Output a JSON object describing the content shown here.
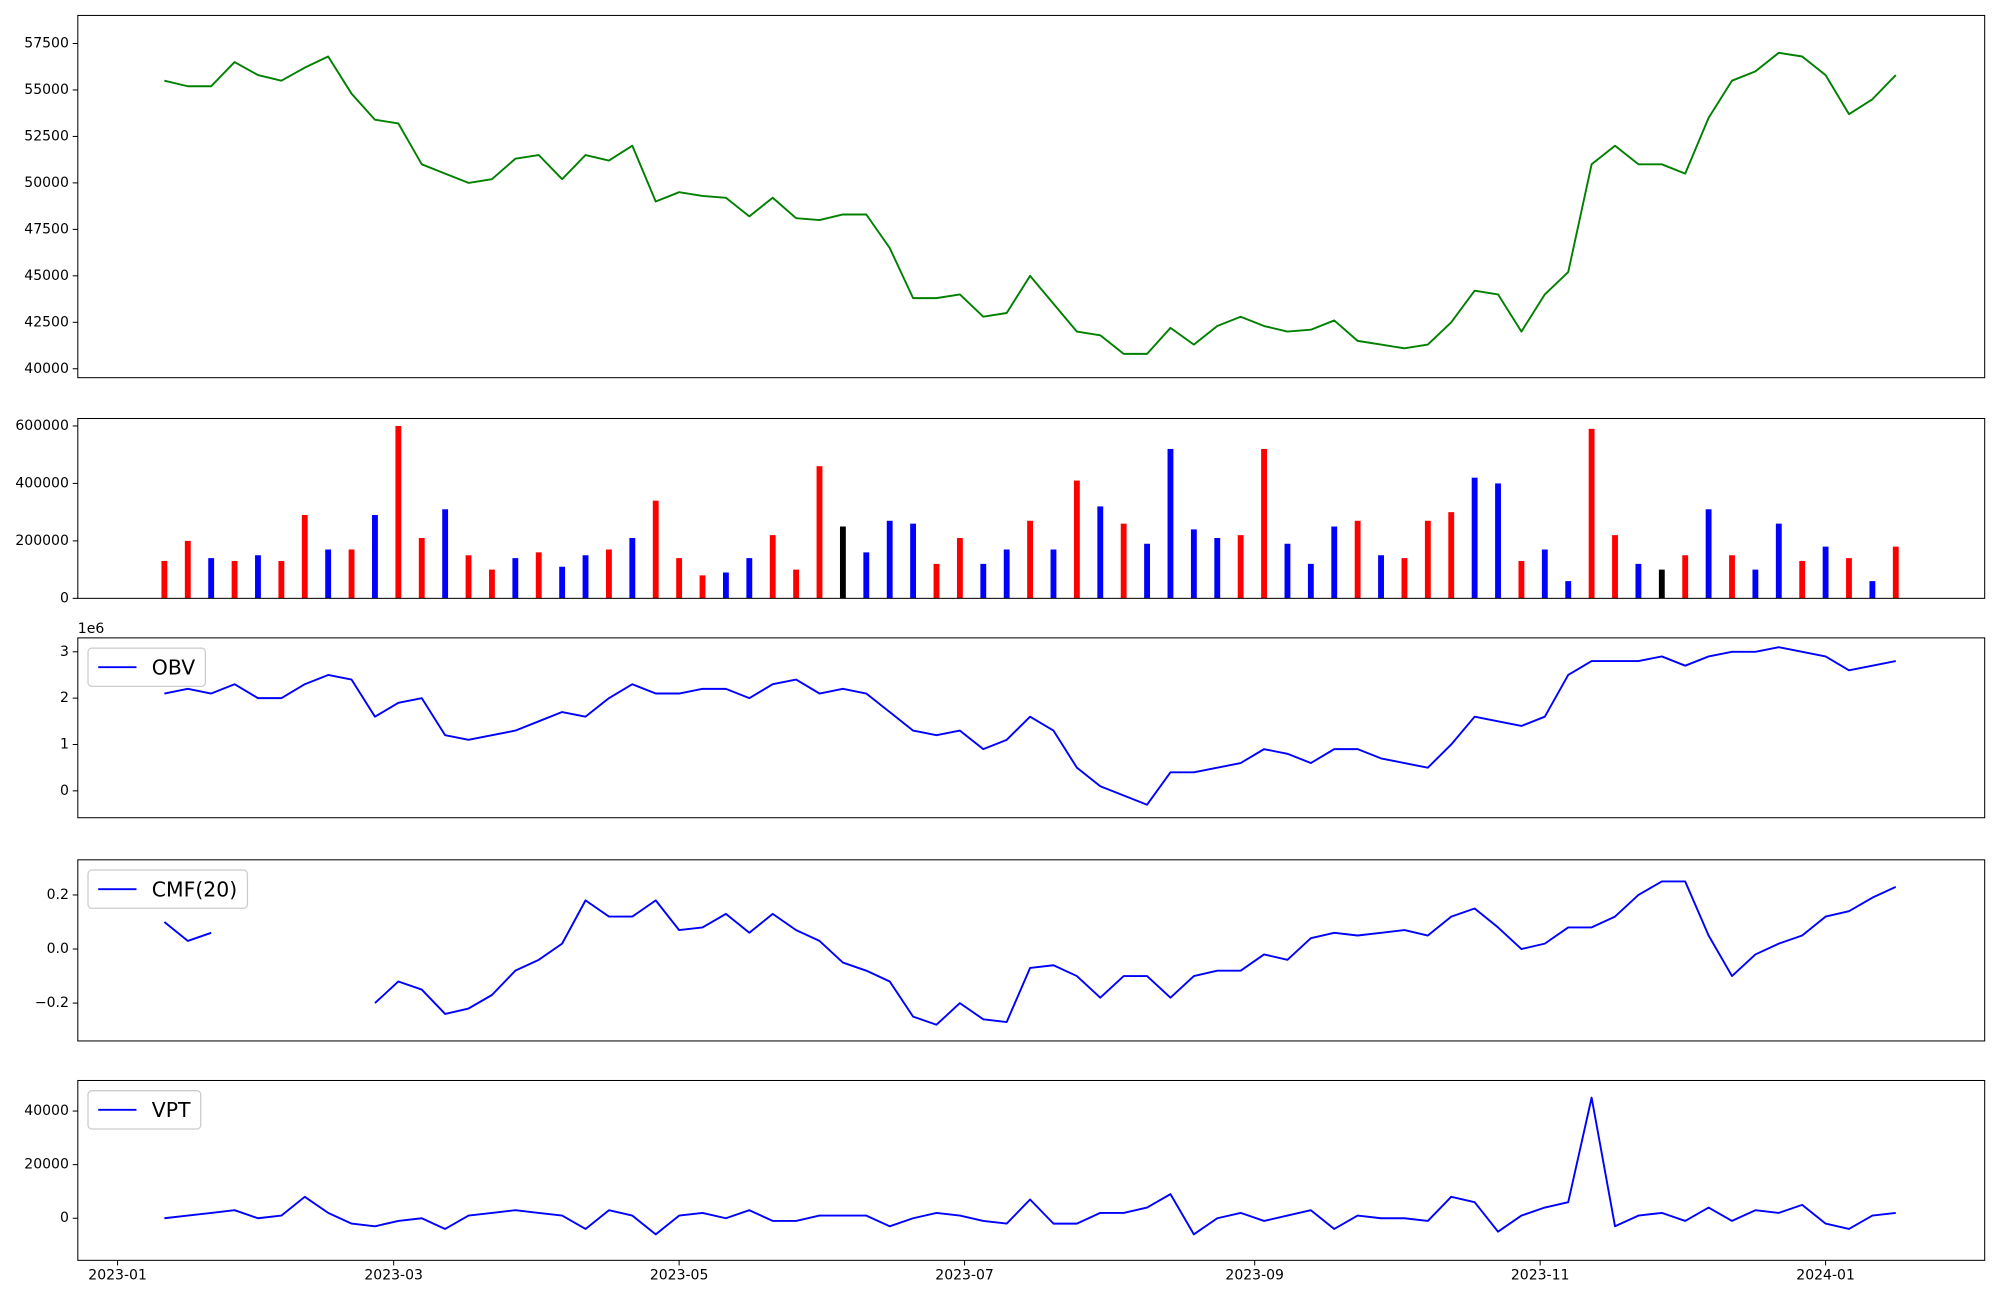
{
  "chart_data": [
    {
      "type": "line",
      "xlim": [
        -8.5,
        399
      ],
      "ylim": [
        39520,
        59010
      ],
      "yticks": [
        40000,
        42500,
        45000,
        47500,
        50000,
        52500,
        55000,
        57500
      ],
      "x": [
        10,
        15,
        20,
        25,
        30,
        35,
        40,
        45,
        50,
        55,
        60,
        65,
        70,
        75,
        80,
        85,
        90,
        95,
        100,
        105,
        110,
        115,
        120,
        125,
        130,
        135,
        140,
        145,
        150,
        155,
        160,
        165,
        170,
        175,
        180,
        185,
        190,
        195,
        200,
        205,
        210,
        215,
        220,
        225,
        230,
        235,
        240,
        245,
        250,
        255,
        260,
        265,
        270,
        275,
        280,
        285,
        290,
        295,
        300,
        305,
        310,
        315,
        320,
        325,
        330,
        335,
        340,
        345,
        350,
        355,
        360,
        365,
        370,
        375,
        380
      ],
      "series": [
        {
          "color": "#008000",
          "values": [
            55500,
            55200,
            55200,
            56500,
            55800,
            55500,
            56200,
            56800,
            54800,
            53400,
            53200,
            51000,
            50500,
            50000,
            50200,
            51300,
            51500,
            50200,
            51500,
            51200,
            52000,
            49000,
            49500,
            49300,
            49200,
            48200,
            49200,
            48100,
            48000,
            48300,
            48300,
            46500,
            43800,
            43800,
            44000,
            42800,
            43000,
            45000,
            43500,
            42000,
            41800,
            40800,
            40800,
            42200,
            41300,
            42300,
            42800,
            42300,
            42000,
            42100,
            42600,
            41500,
            41300,
            41100,
            41300,
            42500,
            44200,
            44000,
            42000,
            44000,
            45200,
            51000,
            52000,
            51000,
            51000,
            50500,
            53500,
            55500,
            56000,
            57000,
            56800,
            55800,
            53700,
            54500,
            55800
          ]
        }
      ]
    },
    {
      "type": "bar",
      "xlim": [
        -8.5,
        399
      ],
      "ylim": [
        0,
        626000
      ],
      "yticks": [
        0,
        200000,
        400000,
        600000
      ],
      "x": [
        10,
        15,
        20,
        25,
        30,
        35,
        40,
        45,
        50,
        55,
        60,
        65,
        70,
        75,
        80,
        85,
        90,
        95,
        100,
        105,
        110,
        115,
        120,
        125,
        130,
        135,
        140,
        145,
        150,
        155,
        160,
        165,
        170,
        175,
        180,
        185,
        190,
        195,
        200,
        205,
        210,
        215,
        220,
        225,
        230,
        235,
        240,
        245,
        250,
        255,
        260,
        265,
        270,
        275,
        280,
        285,
        290,
        295,
        300,
        305,
        310,
        315,
        320,
        325,
        330,
        335,
        340,
        345,
        350,
        355,
        360,
        365,
        370,
        375,
        380
      ],
      "values": [
        130000,
        200000,
        140000,
        130000,
        150000,
        130000,
        290000,
        170000,
        170000,
        290000,
        600000,
        210000,
        310000,
        150000,
        100000,
        140000,
        160000,
        110000,
        150000,
        170000,
        210000,
        340000,
        140000,
        80000,
        90000,
        140000,
        220000,
        100000,
        460000,
        250000,
        160000,
        270000,
        260000,
        120000,
        210000,
        120000,
        170000,
        270000,
        170000,
        410000,
        320000,
        260000,
        190000,
        520000,
        240000,
        210000,
        220000,
        520000,
        190000,
        120000,
        250000,
        270000,
        150000,
        140000,
        270000,
        300000,
        420000,
        400000,
        130000,
        170000,
        60000,
        590000,
        220000,
        120000,
        100000,
        150000,
        310000,
        150000,
        100000,
        260000,
        130000,
        180000,
        140000,
        60000,
        180000
      ],
      "colors": [
        "#ff0000",
        "#ff0000",
        "#0000ff",
        "#ff0000",
        "#0000ff",
        "#ff0000",
        "#ff0000",
        "#0000ff",
        "#ff0000",
        "#0000ff",
        "#ff0000",
        "#ff0000",
        "#0000ff",
        "#ff0000",
        "#ff0000",
        "#0000ff",
        "#ff0000",
        "#0000ff",
        "#0000ff",
        "#ff0000",
        "#0000ff",
        "#ff0000",
        "#ff0000",
        "#ff0000",
        "#0000ff",
        "#0000ff",
        "#ff0000",
        "#ff0000",
        "#ff0000",
        "#000000",
        "#0000ff",
        "#0000ff",
        "#0000ff",
        "#ff0000",
        "#ff0000",
        "#0000ff",
        "#0000ff",
        "#ff0000",
        "#0000ff",
        "#ff0000",
        "#0000ff",
        "#ff0000",
        "#0000ff",
        "#0000ff",
        "#0000ff",
        "#0000ff",
        "#ff0000",
        "#ff0000",
        "#0000ff",
        "#0000ff",
        "#0000ff",
        "#ff0000",
        "#0000ff",
        "#ff0000",
        "#ff0000",
        "#ff0000",
        "#0000ff",
        "#0000ff",
        "#ff0000",
        "#0000ff",
        "#0000ff",
        "#ff0000",
        "#ff0000",
        "#0000ff",
        "#000000",
        "#ff0000",
        "#0000ff",
        "#ff0000",
        "#0000ff",
        "#0000ff",
        "#ff0000",
        "#0000ff",
        "#ff0000",
        "#0000ff",
        "#ff0000"
      ]
    },
    {
      "type": "line",
      "xlim": [
        -8.5,
        399
      ],
      "ylim": [
        -0.58,
        3.3
      ],
      "yticks": [
        0,
        1,
        2,
        3
      ],
      "y_offset_label": "1e6",
      "legend": "upper left",
      "x": [
        10,
        15,
        20,
        25,
        30,
        35,
        40,
        45,
        50,
        55,
        60,
        65,
        70,
        75,
        80,
        85,
        90,
        95,
        100,
        105,
        110,
        115,
        120,
        125,
        130,
        135,
        140,
        145,
        150,
        155,
        160,
        165,
        170,
        175,
        180,
        185,
        190,
        195,
        200,
        205,
        210,
        215,
        220,
        225,
        230,
        235,
        240,
        245,
        250,
        255,
        260,
        265,
        270,
        275,
        280,
        285,
        290,
        295,
        300,
        305,
        310,
        315,
        320,
        325,
        330,
        335,
        340,
        345,
        350,
        355,
        360,
        365,
        370,
        375,
        380
      ],
      "series": [
        {
          "name": "OBV",
          "color": "#0000ff",
          "values": [
            2.1,
            2.2,
            2.1,
            2.3,
            2.0,
            2.0,
            2.3,
            2.5,
            2.4,
            1.6,
            1.9,
            2.0,
            1.2,
            1.1,
            1.2,
            1.3,
            1.5,
            1.7,
            1.6,
            2.0,
            2.3,
            2.1,
            2.1,
            2.2,
            2.2,
            2.0,
            2.3,
            2.4,
            2.1,
            2.2,
            2.1,
            1.7,
            1.3,
            1.2,
            1.3,
            0.9,
            1.1,
            1.6,
            1.3,
            0.5,
            0.1,
            -0.1,
            -0.3,
            0.4,
            0.4,
            0.5,
            0.6,
            0.9,
            0.8,
            0.6,
            0.9,
            0.9,
            0.7,
            0.6,
            0.5,
            1.0,
            1.6,
            1.5,
            1.4,
            1.6,
            2.5,
            2.8,
            2.8,
            2.8,
            2.9,
            2.7,
            2.9,
            3.0,
            3.0,
            3.1,
            3.0,
            2.9,
            2.6,
            2.7,
            2.8
          ]
        }
      ]
    },
    {
      "type": "line",
      "xlim": [
        -8.5,
        399
      ],
      "ylim": [
        -0.34,
        0.33
      ],
      "yticks": [
        {
          "value": -0.2,
          "label": "−0.2"
        },
        {
          "value": 0,
          "label": "0.0"
        },
        {
          "value": 0.2,
          "label": "0.2"
        }
      ],
      "legend": "upper left",
      "x": [
        10,
        15,
        20,
        25,
        30,
        35,
        40,
        45,
        50,
        55,
        60,
        65,
        70,
        75,
        80,
        85,
        90,
        95,
        100,
        105,
        110,
        115,
        120,
        125,
        130,
        135,
        140,
        145,
        150,
        155,
        160,
        165,
        170,
        175,
        180,
        185,
        190,
        195,
        200,
        205,
        210,
        215,
        220,
        225,
        230,
        235,
        240,
        245,
        250,
        255,
        260,
        265,
        270,
        275,
        280,
        285,
        290,
        295,
        300,
        305,
        310,
        315,
        320,
        325,
        330,
        335,
        340,
        345,
        350,
        355,
        360,
        365,
        370,
        375,
        380
      ],
      "series": [
        {
          "name": "CMF(20)",
          "color": "#0000ff",
          "values": [
            0.1,
            0.03,
            0.06,
            null,
            null,
            null,
            null,
            null,
            null,
            -0.2,
            -0.12,
            -0.15,
            -0.24,
            -0.22,
            -0.17,
            -0.08,
            -0.04,
            0.02,
            0.18,
            0.12,
            0.12,
            0.18,
            0.07,
            0.08,
            0.13,
            0.06,
            0.13,
            0.07,
            0.03,
            -0.05,
            -0.08,
            -0.12,
            -0.25,
            -0.28,
            -0.2,
            -0.26,
            -0.27,
            -0.07,
            -0.06,
            -0.1,
            -0.18,
            -0.1,
            -0.1,
            -0.18,
            -0.1,
            -0.08,
            -0.08,
            -0.02,
            -0.04,
            0.04,
            0.06,
            0.05,
            0.06,
            0.07,
            0.05,
            0.12,
            0.15,
            0.08,
            0.0,
            0.02,
            0.08,
            0.08,
            0.12,
            0.2,
            0.25,
            0.25,
            0.05,
            -0.1,
            -0.02,
            0.02,
            0.05,
            0.12,
            0.14,
            0.19,
            0.23
          ]
        }
      ]
    },
    {
      "type": "line",
      "xlim": [
        -8.5,
        399
      ],
      "ylim": [
        -15700,
        51400
      ],
      "yticks": [
        0,
        20000,
        40000
      ],
      "legend": "upper left",
      "xticks": [
        {
          "value": 0,
          "label": "2023-01"
        },
        {
          "value": 59,
          "label": "2023-03"
        },
        {
          "value": 120,
          "label": "2023-05"
        },
        {
          "value": 181,
          "label": "2023-07"
        },
        {
          "value": 243,
          "label": "2023-09"
        },
        {
          "value": 304,
          "label": "2023-11"
        },
        {
          "value": 365,
          "label": "2024-01"
        }
      ],
      "x": [
        10,
        15,
        20,
        25,
        30,
        35,
        40,
        45,
        50,
        55,
        60,
        65,
        70,
        75,
        80,
        85,
        90,
        95,
        100,
        105,
        110,
        115,
        120,
        125,
        130,
        135,
        140,
        145,
        150,
        155,
        160,
        165,
        170,
        175,
        180,
        185,
        190,
        195,
        200,
        205,
        210,
        215,
        220,
        225,
        230,
        235,
        240,
        245,
        250,
        255,
        260,
        265,
        270,
        275,
        280,
        285,
        290,
        295,
        300,
        305,
        310,
        315,
        320,
        325,
        330,
        335,
        340,
        345,
        350,
        355,
        360,
        365,
        370,
        375,
        380
      ],
      "series": [
        {
          "name": "VPT",
          "color": "#0000ff",
          "values": [
            0,
            1000,
            2000,
            3000,
            0,
            1000,
            8000,
            2000,
            -2000,
            -3000,
            -1000,
            0,
            -4000,
            1000,
            2000,
            3000,
            2000,
            1000,
            -4000,
            3000,
            1000,
            -6000,
            1000,
            2000,
            0,
            3000,
            -1000,
            -1000,
            1000,
            1000,
            1000,
            -3000,
            0,
            2000,
            1000,
            -1000,
            -2000,
            7000,
            -2000,
            -2000,
            2000,
            2000,
            4000,
            9000,
            -6000,
            0,
            2000,
            -1000,
            1000,
            3000,
            -4000,
            1000,
            0,
            0,
            -1000,
            8000,
            6000,
            -5000,
            1000,
            4000,
            6000,
            45000,
            -3000,
            1000,
            2000,
            -1000,
            4000,
            -1000,
            3000,
            2000,
            5000,
            -2000,
            -4000,
            1000,
            2000
          ]
        }
      ]
    }
  ]
}
